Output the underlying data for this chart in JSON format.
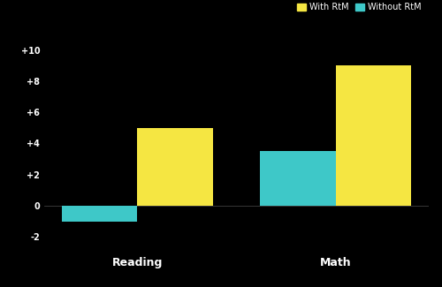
{
  "categories": [
    "Reading",
    "Math"
  ],
  "with_rtm": [
    5.0,
    9.0
  ],
  "without_rtm": [
    -1.0,
    3.5
  ],
  "color_with": "#F5E642",
  "color_without": "#3EC8C8",
  "background_color": "#000000",
  "text_color": "#FFFFFF",
  "ylim": [
    -3,
    11
  ],
  "yticks": [
    -2,
    0,
    2,
    4,
    6,
    8,
    10
  ],
  "ytick_labels": [
    "-2",
    "0",
    "+2",
    "+4",
    "+6",
    "+8",
    "+10"
  ],
  "legend_with": "With RtM",
  "legend_without": "Without RtM",
  "bar_width": 0.38,
  "tick_fontsize": 7,
  "legend_fontsize": 7,
  "xtick_fontsize": 9
}
